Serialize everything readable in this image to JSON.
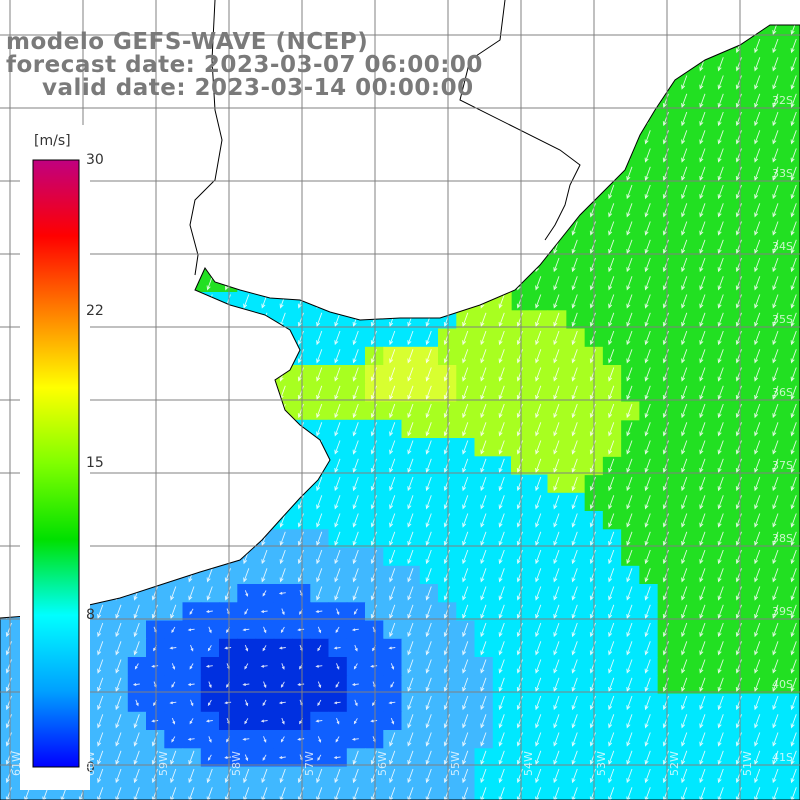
{
  "header": {
    "line1": "modelo GEFS-WAVE (NCEP)",
    "line2": "forecast date: 2023-03-07 06:00:00",
    "line3": "valid date: 2023-03-14 00:00:00"
  },
  "colorbar": {
    "unit": "[m/s]",
    "ticks": [
      "30",
      "22",
      "15",
      "8",
      "0"
    ],
    "tick_values": [
      30,
      22,
      15,
      8,
      0
    ],
    "range": [
      0,
      30
    ],
    "stops": [
      "#0000ff",
      "#00a0ff",
      "#00ffff",
      "#00e000",
      "#80ff00",
      "#ffff00",
      "#ff8000",
      "#ff0000",
      "#c00080"
    ]
  },
  "map": {
    "lat_labels": [
      "32S",
      "33S",
      "34S",
      "35S",
      "36S",
      "37S",
      "38S",
      "39S",
      "40S",
      "41S"
    ],
    "lon_labels": [
      "61W",
      "60W",
      "59W",
      "58W",
      "57W",
      "56W",
      "55W",
      "54W",
      "53W",
      "52W",
      "51W"
    ],
    "field_colors": {
      "land": "#ffffff",
      "green": "#22e022",
      "lime": "#a8ff20",
      "yellow_green": "#d8ff30",
      "cyan": "#00e8ff",
      "light_blue": "#40b8ff",
      "blue": "#1060ff",
      "deep_blue": "#0030e0"
    },
    "wind_direction": "from north-northeast toward south-southwest",
    "grid_color": "#808080"
  }
}
